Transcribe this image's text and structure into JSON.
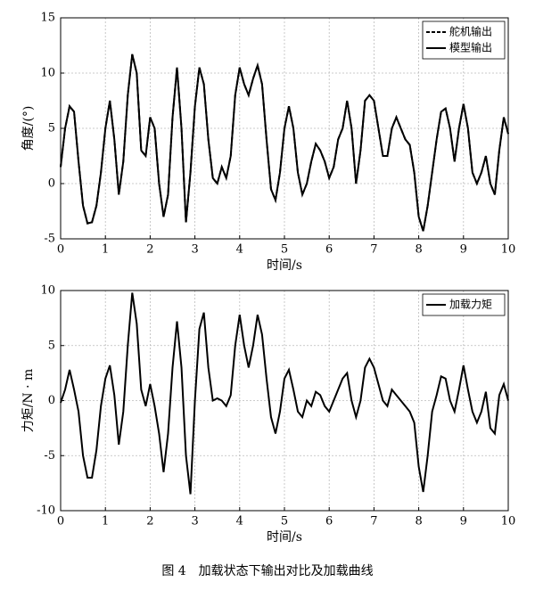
{
  "chart_data": [
    {
      "type": "line",
      "xlabel": "时间/s",
      "ylabel": "角度/(°)",
      "xlim": [
        0,
        10
      ],
      "ylim": [
        -5,
        15
      ],
      "xticks": [
        0,
        1,
        2,
        3,
        4,
        5,
        6,
        7,
        8,
        9,
        10
      ],
      "yticks": [
        -5,
        0,
        5,
        10,
        15
      ],
      "grid": true,
      "legend": "upper right",
      "x": [
        0,
        0.1,
        0.2,
        0.3,
        0.4,
        0.5,
        0.6,
        0.7,
        0.8,
        0.9,
        1,
        1.1,
        1.2,
        1.3,
        1.4,
        1.5,
        1.6,
        1.7,
        1.8,
        1.9,
        2,
        2.1,
        2.2,
        2.3,
        2.4,
        2.5,
        2.6,
        2.7,
        2.8,
        2.9,
        3,
        3.1,
        3.2,
        3.3,
        3.4,
        3.5,
        3.6,
        3.7,
        3.8,
        3.9,
        4,
        4.1,
        4.2,
        4.3,
        4.4,
        4.5,
        4.6,
        4.7,
        4.8,
        4.9,
        5,
        5.1,
        5.2,
        5.3,
        5.4,
        5.5,
        5.6,
        5.7,
        5.8,
        5.9,
        6,
        6.1,
        6.2,
        6.3,
        6.4,
        6.5,
        6.6,
        6.7,
        6.8,
        6.9,
        7,
        7.1,
        7.2,
        7.3,
        7.4,
        7.5,
        7.6,
        7.7,
        7.8,
        7.9,
        8,
        8.1,
        8.2,
        8.3,
        8.4,
        8.5,
        8.6,
        8.7,
        8.8,
        8.9,
        9,
        9.1,
        9.2,
        9.3,
        9.4,
        9.5,
        9.6,
        9.7,
        9.8,
        9.9,
        10
      ],
      "series": [
        {
          "name": "舵机输出",
          "color": "#000000",
          "linestyle": "dashed",
          "values": [
            1.5,
            5,
            7,
            6.5,
            2,
            -2,
            -3.6,
            -3.5,
            -2,
            1,
            5,
            7.5,
            4,
            -1,
            2,
            8,
            11.7,
            10,
            3,
            2.5,
            6,
            5,
            0,
            -3,
            -1,
            6,
            10.5,
            5,
            -3.5,
            1,
            7,
            10.5,
            9,
            4,
            0.5,
            0,
            1.5,
            0.5,
            2.5,
            8,
            10.5,
            9,
            8,
            9.5,
            10.7,
            9,
            4,
            -0.5,
            -1.5,
            1,
            5,
            7,
            5,
            1,
            -1,
            0,
            2,
            3.6,
            3,
            2,
            0.5,
            1.5,
            4,
            5,
            7.5,
            5,
            0,
            3,
            7.5,
            8,
            7.5,
            5,
            2.5,
            2.5,
            5,
            6,
            5,
            4,
            3.5,
            1,
            -3,
            -4.3,
            -2,
            1,
            4,
            6.5,
            6.8,
            5,
            2,
            5,
            7.2,
            5,
            1,
            0,
            1,
            2.5,
            0,
            -1,
            3,
            6,
            4.5
          ]
        },
        {
          "name": "模型输出",
          "color": "#000000",
          "linestyle": "solid",
          "values": [
            1.5,
            5,
            7,
            6.5,
            2,
            -2,
            -3.6,
            -3.5,
            -2,
            1,
            5,
            7.5,
            4,
            -1,
            2,
            8,
            11.7,
            10,
            3,
            2.5,
            6,
            5,
            0,
            -3,
            -1,
            6,
            10.5,
            5,
            -3.5,
            1,
            7,
            10.5,
            9,
            4,
            0.5,
            0,
            1.5,
            0.5,
            2.5,
            8,
            10.5,
            9,
            8,
            9.5,
            10.7,
            9,
            4,
            -0.5,
            -1.5,
            1,
            5,
            7,
            5,
            1,
            -1,
            0,
            2,
            3.6,
            3,
            2,
            0.5,
            1.5,
            4,
            5,
            7.5,
            5,
            0,
            3,
            7.5,
            8,
            7.5,
            5,
            2.5,
            2.5,
            5,
            6,
            5,
            4,
            3.5,
            1,
            -3,
            -4.3,
            -2,
            1,
            4,
            6.5,
            6.8,
            5,
            2,
            5,
            7.2,
            5,
            1,
            0,
            1,
            2.5,
            0,
            -1,
            3,
            6,
            4.5
          ]
        }
      ]
    },
    {
      "type": "line",
      "xlabel": "时间/s",
      "ylabel": "力矩/N · m",
      "xlim": [
        0,
        10
      ],
      "ylim": [
        -10,
        10
      ],
      "xticks": [
        0,
        1,
        2,
        3,
        4,
        5,
        6,
        7,
        8,
        9,
        10
      ],
      "yticks": [
        -10,
        -5,
        0,
        5,
        10
      ],
      "grid": true,
      "legend": "upper right",
      "x": [
        0,
        0.1,
        0.2,
        0.3,
        0.4,
        0.5,
        0.6,
        0.7,
        0.8,
        0.9,
        1,
        1.1,
        1.2,
        1.3,
        1.4,
        1.5,
        1.6,
        1.7,
        1.8,
        1.9,
        2,
        2.1,
        2.2,
        2.3,
        2.4,
        2.5,
        2.6,
        2.7,
        2.8,
        2.9,
        3,
        3.1,
        3.2,
        3.3,
        3.4,
        3.5,
        3.6,
        3.7,
        3.8,
        3.9,
        4,
        4.1,
        4.2,
        4.3,
        4.4,
        4.5,
        4.6,
        4.7,
        4.8,
        4.9,
        5,
        5.1,
        5.2,
        5.3,
        5.4,
        5.5,
        5.6,
        5.7,
        5.8,
        5.9,
        6,
        6.1,
        6.2,
        6.3,
        6.4,
        6.5,
        6.6,
        6.7,
        6.8,
        6.9,
        7,
        7.1,
        7.2,
        7.3,
        7.4,
        7.5,
        7.6,
        7.7,
        7.8,
        7.9,
        8,
        8.1,
        8.2,
        8.3,
        8.4,
        8.5,
        8.6,
        8.7,
        8.8,
        8.9,
        9,
        9.1,
        9.2,
        9.3,
        9.4,
        9.5,
        9.6,
        9.7,
        9.8,
        9.9,
        10
      ],
      "series": [
        {
          "name": "加载力矩",
          "color": "#000000",
          "linestyle": "solid",
          "values": [
            -0.2,
            1,
            2.8,
            1,
            -1,
            -5,
            -7,
            -7,
            -4.5,
            -0.5,
            2,
            3.2,
            0.5,
            -4,
            -1,
            5,
            9.8,
            7,
            1,
            -0.5,
            1.5,
            -0.5,
            -3,
            -6.5,
            -3,
            3,
            7.2,
            3,
            -5,
            -8.5,
            0,
            6.5,
            8,
            3,
            0,
            0.2,
            0,
            -0.5,
            0.5,
            5,
            7.8,
            5,
            3,
            5,
            7.8,
            6,
            2,
            -1.5,
            -3,
            -1,
            2,
            2.8,
            1,
            -1,
            -1.5,
            0,
            -0.5,
            0.8,
            0.5,
            -0.5,
            -1,
            0,
            1,
            2,
            2.5,
            0,
            -1.5,
            0,
            3,
            3.8,
            3,
            1.5,
            0,
            -0.5,
            1,
            0.5,
            0,
            -0.5,
            -1,
            -2,
            -6,
            -8.3,
            -5,
            -1,
            0.5,
            2.2,
            2,
            0,
            -1,
            1,
            3.2,
            1,
            -1,
            -2,
            -1,
            0.8,
            -2.5,
            -3,
            0.5,
            1.5,
            0
          ]
        }
      ]
    }
  ],
  "caption": "图 4　加载状态下输出对比及加载曲线"
}
